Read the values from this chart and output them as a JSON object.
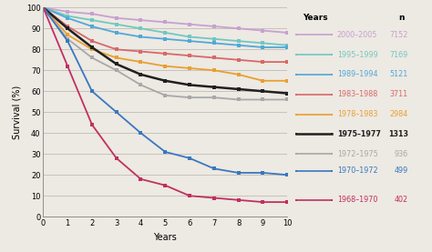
{
  "xlabel": "Years",
  "ylabel": "Survival (%)",
  "xlim": [
    0,
    10
  ],
  "ylim": [
    0,
    100
  ],
  "xticks": [
    0,
    1,
    2,
    3,
    4,
    5,
    6,
    7,
    8,
    9,
    10
  ],
  "yticks": [
    0,
    10,
    20,
    30,
    40,
    50,
    60,
    70,
    80,
    90,
    100
  ],
  "background_color": "#ede9e3",
  "series": [
    {
      "label": "2000–2005",
      "n": "7152",
      "color": "#c8a0d0",
      "bold": false,
      "y": [
        100,
        98,
        97,
        95,
        94,
        93,
        92,
        91,
        90,
        89,
        88
      ]
    },
    {
      "label": "1995–1999",
      "n": "7169",
      "color": "#70c8c0",
      "bold": false,
      "y": [
        100,
        96,
        94,
        92,
        90,
        88,
        86,
        85,
        84,
        83,
        82
      ]
    },
    {
      "label": "1989–1994",
      "n": "5121",
      "color": "#50a8d8",
      "bold": false,
      "y": [
        100,
        95,
        91,
        88,
        86,
        85,
        84,
        83,
        82,
        81,
        81
      ]
    },
    {
      "label": "1983–1988",
      "n": "3711",
      "color": "#d86868",
      "bold": false,
      "y": [
        100,
        91,
        84,
        80,
        79,
        78,
        77,
        76,
        75,
        74,
        74
      ]
    },
    {
      "label": "1978–1983",
      "n": "2984",
      "color": "#e8a030",
      "bold": false,
      "y": [
        100,
        87,
        80,
        76,
        74,
        72,
        71,
        70,
        68,
        65,
        65
      ]
    },
    {
      "label": "1975–1977",
      "n": "1313",
      "color": "#202020",
      "bold": true,
      "y": [
        100,
        90,
        81,
        73,
        68,
        65,
        63,
        62,
        61,
        60,
        59
      ]
    },
    {
      "label": "1972–1975",
      "n": "936",
      "color": "#a8a8a8",
      "bold": false,
      "y": [
        100,
        85,
        76,
        70,
        63,
        58,
        57,
        57,
        56,
        56,
        56
      ]
    },
    {
      "label": "1970–1972",
      "n": "499",
      "color": "#3878c0",
      "bold": false,
      "y": [
        100,
        84,
        60,
        50,
        40,
        31,
        28,
        23,
        21,
        21,
        20
      ]
    },
    {
      "label": "1968–1970",
      "n": "402",
      "color": "#c03060",
      "bold": false,
      "y": [
        100,
        72,
        44,
        28,
        18,
        15,
        10,
        9,
        8,
        7,
        7
      ]
    }
  ]
}
